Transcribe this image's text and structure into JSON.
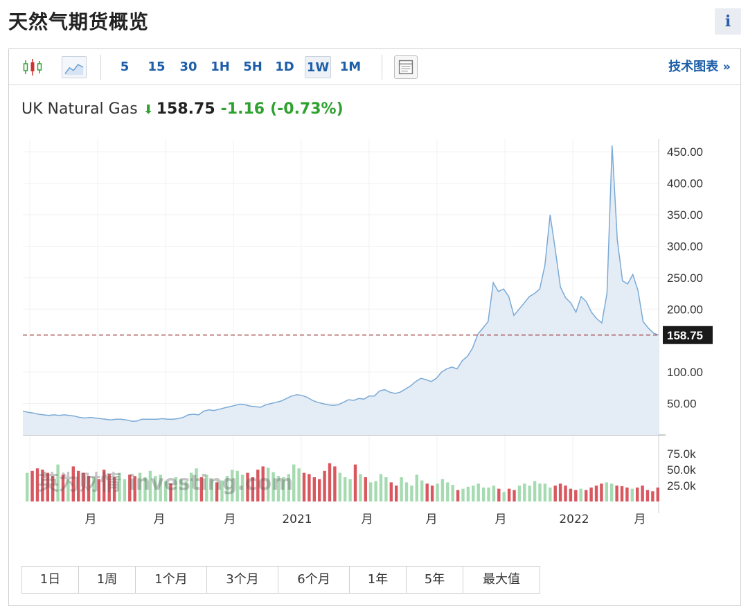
{
  "page_title": "天然气期货概览",
  "info_button": "i",
  "toolbar": {
    "timeframes": [
      "5",
      "15",
      "30",
      "1H",
      "5H",
      "1D",
      "1W",
      "1M"
    ],
    "active_timeframe": "1W",
    "tech_chart_link": "技术图表 »"
  },
  "quote": {
    "name": "UK Natural Gas",
    "arrow": "⬇",
    "last": "158.75",
    "change": "-1.16",
    "change_pct": "(-0.73%)"
  },
  "range_buttons": [
    "1日",
    "1周",
    "1个月",
    "3个月",
    "6个月",
    "1年",
    "5年",
    "最大值"
  ],
  "watermark": "英为财情 investing.com",
  "colors": {
    "line": "#7aaad6",
    "area": "#e4ecf6",
    "vol_up": "#a6dbb2",
    "vol_down": "#d9575f",
    "ref_line": "#9e3b3b",
    "accent": "#1d5ea8",
    "down_green": "#2ea12e"
  },
  "chart_data": {
    "type": "area",
    "title": "UK Natural Gas",
    "current_value": 158.75,
    "price_axis": {
      "ticks": [
        "50.00",
        "100.00",
        "200.00",
        "250.00",
        "300.00",
        "350.00",
        "400.00",
        "450.00"
      ],
      "current_label": "158.75",
      "range": [
        0,
        470
      ]
    },
    "volume_axis": {
      "ticks": [
        "25.0k",
        "50.0k",
        "75.0k"
      ],
      "range": [
        0,
        100
      ]
    },
    "x_labels": [
      "月",
      "月",
      "月",
      "2021",
      "月",
      "月",
      "月",
      "2022",
      "月"
    ],
    "price_series": [
      38,
      36,
      35,
      33,
      32,
      31,
      32,
      31,
      32,
      31,
      30,
      28,
      27,
      28,
      27,
      26,
      25,
      24,
      25,
      25,
      24,
      22,
      22,
      25,
      25,
      25,
      25,
      26,
      25,
      25,
      26,
      28,
      32,
      33,
      32,
      38,
      40,
      39,
      41,
      43,
      45,
      47,
      49,
      48,
      46,
      45,
      44,
      48,
      50,
      52,
      54,
      58,
      62,
      64,
      63,
      60,
      55,
      52,
      50,
      48,
      47,
      48,
      52,
      56,
      55,
      58,
      57,
      62,
      62,
      70,
      72,
      68,
      66,
      68,
      73,
      78,
      85,
      90,
      88,
      85,
      90,
      100,
      105,
      108,
      105,
      118,
      125,
      138,
      160,
      170,
      180,
      242,
      228,
      232,
      220,
      190,
      200,
      210,
      220,
      225,
      232,
      270,
      350,
      295,
      235,
      218,
      210,
      195,
      220,
      212,
      195,
      185,
      178,
      225,
      460,
      310,
      245,
      240,
      255,
      230,
      180,
      170,
      162,
      158.75
    ],
    "volume_series": [
      45,
      48,
      52,
      50,
      45,
      40,
      58,
      42,
      35,
      55,
      48,
      45,
      40,
      38,
      35,
      50,
      43,
      38,
      45,
      35,
      42,
      40,
      45,
      38,
      48,
      40,
      42,
      32,
      28,
      38,
      35,
      32,
      45,
      52,
      38,
      42,
      35,
      30,
      33,
      40,
      50,
      48,
      42,
      45,
      38,
      50,
      55,
      53,
      46,
      40,
      38,
      43,
      58,
      52,
      45,
      43,
      38,
      35,
      48,
      60,
      55,
      45,
      38,
      35,
      58,
      43,
      38,
      30,
      32,
      43,
      38,
      30,
      25,
      38,
      30,
      25,
      42,
      33,
      28,
      25,
      28,
      35,
      30,
      26,
      18,
      20,
      23,
      25,
      28,
      22,
      22,
      25,
      20,
      15,
      20,
      18,
      25,
      28,
      25,
      32,
      28,
      28,
      22,
      25,
      28,
      25,
      20,
      18,
      20,
      18,
      22,
      25,
      28,
      30,
      28,
      25,
      24,
      22,
      20,
      22,
      25,
      18,
      16,
      22
    ]
  }
}
